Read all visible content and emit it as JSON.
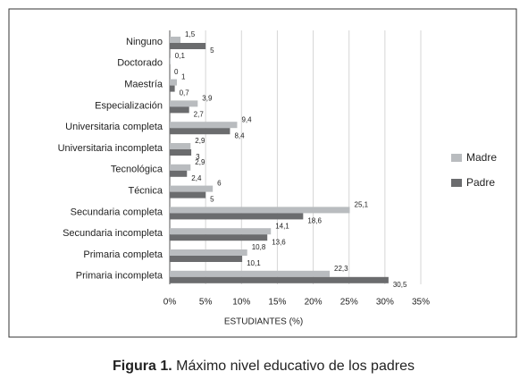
{
  "chart_data": {
    "type": "bar",
    "orientation": "horizontal",
    "categories": [
      "Ninguno",
      "Doctorado",
      "Maestría",
      "Especialización",
      "Universitaria completa",
      "Universitaria incompleta",
      "Tecnológica",
      "Técnica",
      "Secundaria completa",
      "Secundaria incompleta",
      "Primaria completa",
      "Primaria incompleta"
    ],
    "series": [
      {
        "name": "Madre",
        "color": "#b9bcbf",
        "values": [
          1.5,
          0.1,
          1,
          3.9,
          9.4,
          2.9,
          2.9,
          6,
          25.1,
          14.1,
          10.8,
          22.3
        ],
        "value_labels": [
          "1,5",
          "0,1",
          "1",
          "3,9",
          "9,4",
          "2,9",
          "2,9",
          "6",
          "25,1",
          "14,1",
          "10,8",
          "22,3"
        ]
      },
      {
        "name": "Padre",
        "color": "#6b6c6e",
        "values": [
          5,
          0,
          0.7,
          2.7,
          8.4,
          3,
          2.4,
          5,
          18.6,
          13.6,
          10.1,
          30.5
        ],
        "value_labels": [
          "5",
          "0",
          "0,7",
          "2,7",
          "8,4",
          "3",
          "2,4",
          "5",
          "18,6",
          "13,6",
          "10,1",
          "30,5"
        ]
      }
    ],
    "xlim": [
      0,
      35
    ],
    "xticks": [
      {
        "value": 0,
        "label": "0%"
      },
      {
        "value": 5,
        "label": "5%"
      },
      {
        "value": 10,
        "label": "10%"
      },
      {
        "value": 15,
        "label": "15%"
      },
      {
        "value": 20,
        "label": "20%"
      },
      {
        "value": 25,
        "label": "25%"
      },
      {
        "value": 30,
        "label": "30%"
      },
      {
        "value": 35,
        "label": "35%"
      }
    ],
    "xlabel": "ESTUDIANTES (%)",
    "grid": true,
    "legend": "right",
    "caption_label": "Figura 1.",
    "caption": "Máximo nivel educativo de los padres"
  }
}
